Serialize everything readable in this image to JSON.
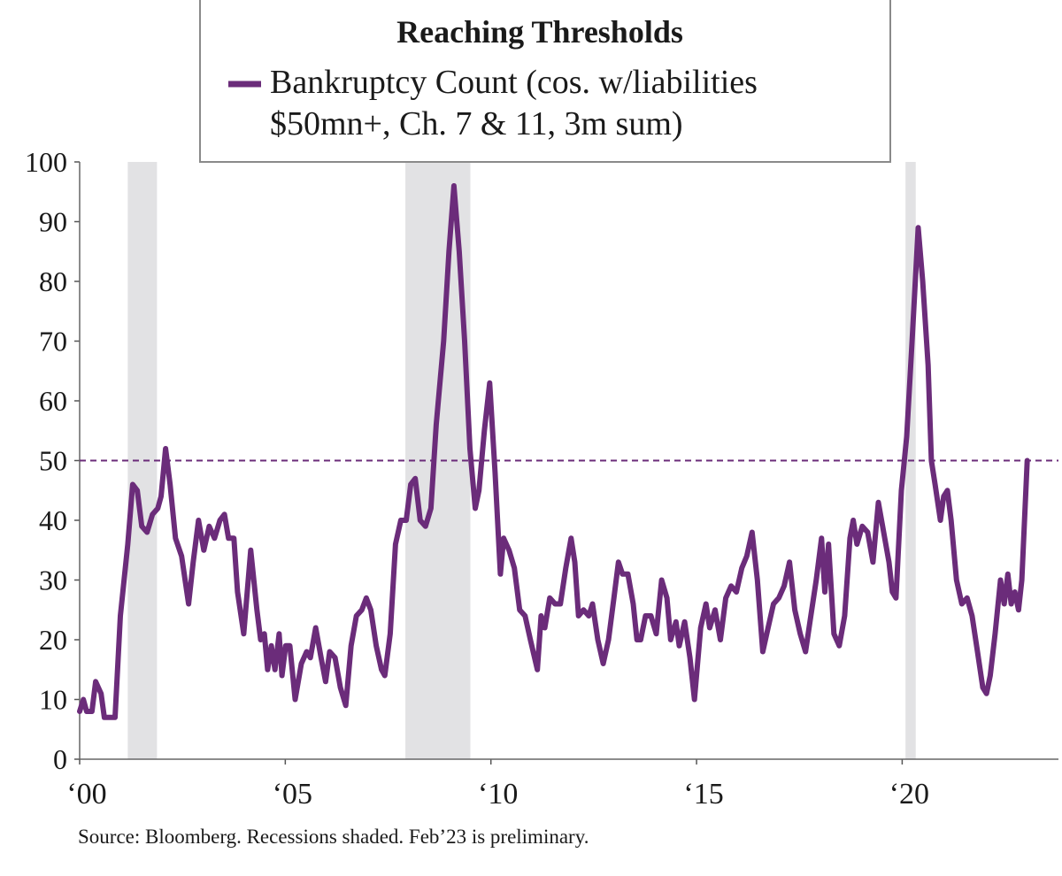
{
  "chart_data": {
    "type": "line",
    "title": "Reaching Thresholds",
    "source": "Source: Bloomberg. Recessions shaded. Feb’23 is preliminary.",
    "xlim": [
      2000,
      2023.8
    ],
    "xticks": [
      {
        "value": 2000,
        "label": "‘00"
      },
      {
        "value": 2005,
        "label": "‘05"
      },
      {
        "value": 2010,
        "label": "‘10"
      },
      {
        "value": 2015,
        "label": "‘15"
      },
      {
        "value": 2020,
        "label": "‘20"
      }
    ],
    "ylim": [
      0,
      100
    ],
    "yticks": [
      0,
      10,
      20,
      30,
      40,
      50,
      60,
      70,
      80,
      90,
      100
    ],
    "threshold": 50,
    "recessions": [
      [
        2001.17,
        2001.88
      ],
      [
        2007.92,
        2009.5
      ],
      [
        2020.08,
        2020.33
      ]
    ],
    "recession_color": "#e2e2e4",
    "x": [
      2000.0,
      2000.09,
      2000.17,
      2000.3,
      2000.39,
      2000.52,
      2000.6,
      2000.86,
      2000.99,
      2001.17,
      2001.29,
      2001.4,
      2001.51,
      2001.64,
      2001.77,
      2001.9,
      2001.98,
      2002.09,
      2002.2,
      2002.33,
      2002.48,
      2002.65,
      2002.76,
      2002.89,
      2003.02,
      2003.15,
      2003.28,
      2003.41,
      2003.52,
      2003.62,
      2003.75,
      2003.84,
      2003.99,
      2004.16,
      2004.31,
      2004.4,
      2004.49,
      2004.57,
      2004.66,
      2004.75,
      2004.85,
      2004.92,
      2005.01,
      2005.11,
      2005.24,
      2005.39,
      2005.52,
      2005.61,
      2005.74,
      2005.87,
      2005.98,
      2006.08,
      2006.21,
      2006.34,
      2006.47,
      2006.6,
      2006.73,
      2006.86,
      2006.97,
      2007.08,
      2007.21,
      2007.34,
      2007.42,
      2007.55,
      2007.68,
      2007.81,
      2007.94,
      2008.05,
      2008.16,
      2008.28,
      2008.41,
      2008.54,
      2008.67,
      2008.85,
      2008.98,
      2009.1,
      2009.23,
      2009.36,
      2009.49,
      2009.62,
      2009.71,
      2009.84,
      2009.97,
      2010.1,
      2010.23,
      2010.31,
      2010.44,
      2010.57,
      2010.7,
      2010.83,
      2010.96,
      2011.13,
      2011.22,
      2011.31,
      2011.43,
      2011.56,
      2011.69,
      2011.82,
      2011.95,
      2012.04,
      2012.13,
      2012.25,
      2012.38,
      2012.47,
      2012.6,
      2012.73,
      2012.86,
      2012.99,
      2013.1,
      2013.2,
      2013.33,
      2013.46,
      2013.55,
      2013.64,
      2013.76,
      2013.89,
      2014.02,
      2014.15,
      2014.28,
      2014.37,
      2014.5,
      2014.58,
      2014.71,
      2014.84,
      2014.95,
      2015.1,
      2015.23,
      2015.32,
      2015.45,
      2015.58,
      2015.71,
      2015.84,
      2015.97,
      2016.1,
      2016.22,
      2016.35,
      2016.48,
      2016.61,
      2016.74,
      2016.87,
      2017.0,
      2017.13,
      2017.26,
      2017.39,
      2017.52,
      2017.65,
      2017.78,
      2017.91,
      2018.04,
      2018.12,
      2018.21,
      2018.34,
      2018.47,
      2018.6,
      2018.73,
      2018.81,
      2018.9,
      2019.03,
      2019.16,
      2019.29,
      2019.42,
      2019.55,
      2019.68,
      2019.76,
      2019.85,
      2019.98,
      2020.11,
      2020.24,
      2020.39,
      2020.5,
      2020.63,
      2020.71,
      2020.8,
      2020.93,
      2021.01,
      2021.1,
      2021.19,
      2021.32,
      2021.45,
      2021.58,
      2021.7,
      2021.83,
      2021.96,
      2022.05,
      2022.14,
      2022.26,
      2022.39,
      2022.48,
      2022.57,
      2022.65,
      2022.74,
      2022.83,
      2022.91,
      2023.04
    ],
    "series": [
      {
        "name": "Bankruptcy Count (cos. w/liabilities $50mn+, Ch. 7 & 11, 3m sum)",
        "color": "#6b2c7a",
        "values": [
          8,
          10,
          8,
          8,
          13,
          11,
          7,
          7,
          24,
          36,
          46,
          45,
          39,
          38,
          41,
          42,
          44,
          52,
          46,
          37,
          34,
          26,
          33,
          40,
          35,
          39,
          37,
          40,
          41,
          37,
          37,
          28,
          21,
          35,
          25,
          20,
          21,
          15,
          19,
          15,
          21,
          14,
          19,
          19,
          10,
          16,
          18,
          17,
          22,
          17,
          13,
          18,
          17,
          12,
          9,
          19,
          24,
          25,
          27,
          25,
          19,
          15,
          14,
          21,
          36,
          40,
          40,
          46,
          47,
          40,
          39,
          42,
          56,
          70,
          85,
          96,
          85,
          70,
          52,
          42,
          45,
          55,
          63,
          48,
          31,
          37,
          35,
          32,
          25,
          24,
          20,
          15,
          24,
          22,
          27,
          26,
          26,
          32,
          37,
          33,
          24,
          25,
          24,
          26,
          20,
          16,
          20,
          27,
          33,
          31,
          31,
          26,
          20,
          20,
          24,
          24,
          21,
          30,
          27,
          20,
          23,
          19,
          23,
          17,
          10,
          22,
          26,
          22,
          25,
          20,
          27,
          29,
          28,
          32,
          34,
          38,
          30,
          18,
          22,
          26,
          27,
          29,
          33,
          25,
          21,
          18,
          24,
          30,
          37,
          28,
          36,
          21,
          19,
          24,
          37,
          40,
          36,
          39,
          38,
          33,
          43,
          38,
          33,
          28,
          27,
          45,
          54,
          70,
          89,
          80,
          66,
          50,
          46,
          40,
          44,
          45,
          40,
          30,
          26,
          27,
          24,
          18,
          12,
          11,
          14,
          21,
          30,
          26,
          31,
          26,
          28,
          25,
          30,
          50
        ]
      }
    ]
  }
}
